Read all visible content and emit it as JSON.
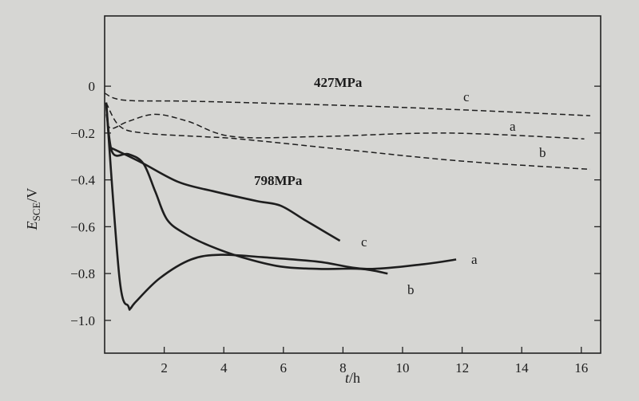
{
  "chart_data": {
    "type": "line",
    "xlabel": "t/h",
    "ylabel": "E_SCE/V",
    "xlim": [
      0,
      16.65
    ],
    "ylim": [
      -1.14,
      0.3
    ],
    "xticks": [
      "2",
      "4",
      "6",
      "8",
      "10",
      "12",
      "14",
      "16"
    ],
    "yticks": [
      "0",
      "-0.2",
      "-0.4",
      "-0.6",
      "-0.8",
      "-1.0"
    ],
    "grid": false,
    "annotations": [
      "427MPa",
      "798MPa"
    ],
    "series": [
      {
        "name": "c",
        "group": "427MPa",
        "style": "dashed",
        "x": [
          0,
          0.7,
          3.2,
          9.9,
          16.3
        ],
        "y": [
          -0.03,
          -0.06,
          -0.065,
          -0.09,
          -0.126
        ]
      },
      {
        "name": "a",
        "group": "427MPa",
        "style": "dashed",
        "x": [
          0.05,
          0.2,
          0.8,
          1.7,
          2.8,
          4.3,
          7.2,
          11.5,
          16.1
        ],
        "y": [
          -0.12,
          -0.18,
          -0.15,
          -0.12,
          -0.15,
          -0.215,
          -0.215,
          -0.2,
          -0.225
        ]
      },
      {
        "name": "b",
        "group": "427MPa",
        "style": "dashed",
        "x": [
          0.05,
          0.5,
          1.3,
          3.2,
          4.5,
          8,
          12,
          16.3
        ],
        "y": [
          -0.07,
          -0.17,
          -0.2,
          -0.215,
          -0.225,
          -0.27,
          -0.32,
          -0.355
        ]
      },
      {
        "name": "c",
        "group": "798MPa",
        "style": "solid",
        "x": [
          0.15,
          0.5,
          1.3,
          2.5,
          3.7,
          5.1,
          5.9,
          6.7,
          7.5,
          7.9
        ],
        "y": [
          -0.26,
          -0.28,
          -0.33,
          -0.41,
          -0.45,
          -0.49,
          -0.51,
          -0.57,
          -0.63,
          -0.66
        ]
      },
      {
        "name": "a",
        "group": "798MPa",
        "style": "solid",
        "x": [
          0.05,
          0.25,
          0.8,
          1.3,
          1.7,
          2.1,
          2.7,
          3.5,
          4.6,
          5.9,
          7.2,
          8.6,
          9.5
        ],
        "y": [
          -0.07,
          -0.28,
          -0.29,
          -0.33,
          -0.45,
          -0.57,
          -0.63,
          -0.68,
          -0.73,
          -0.77,
          -0.78,
          -0.78,
          -0.8
        ]
      },
      {
        "name": "b",
        "group": "798MPa",
        "style": "solid",
        "x": [
          0.05,
          0.5,
          0.8,
          0.86,
          1.05,
          1.85,
          2.9,
          3.9,
          5.3,
          7.2,
          8.8,
          10.7,
          11.8
        ],
        "y": [
          -0.07,
          -0.82,
          -0.94,
          -0.95,
          -0.92,
          -0.82,
          -0.74,
          -0.72,
          -0.73,
          -0.75,
          -0.78,
          -0.76,
          -0.74
        ]
      }
    ]
  }
}
